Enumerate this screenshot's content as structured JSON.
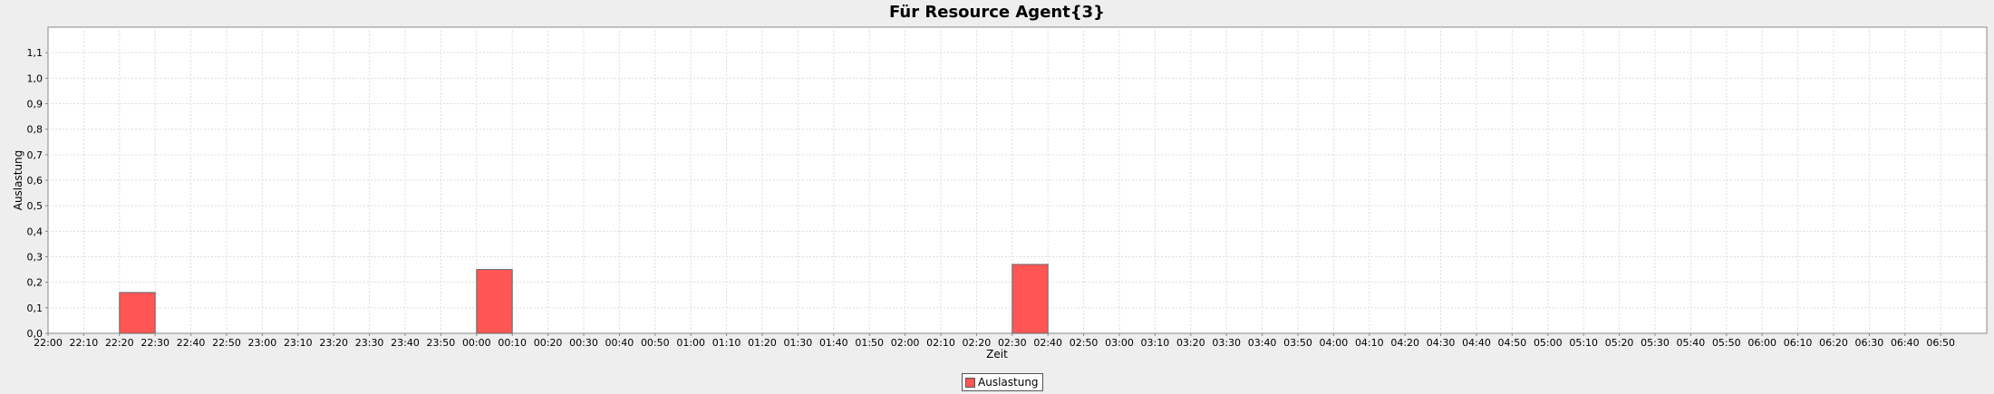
{
  "chart_data": {
    "type": "bar",
    "title": "Für Resource Agent{3}",
    "xlabel": "Zeit",
    "ylabel": "Auslastung",
    "x_ticks": [
      "22:00",
      "22:10",
      "22:20",
      "22:30",
      "22:40",
      "22:50",
      "23:00",
      "23:10",
      "23:20",
      "23:30",
      "23:40",
      "23:50",
      "00:00",
      "00:10",
      "00:20",
      "00:30",
      "00:40",
      "00:50",
      "01:00",
      "01:10",
      "01:20",
      "01:30",
      "01:40",
      "01:50",
      "02:00",
      "02:10",
      "02:20",
      "02:30",
      "02:40",
      "02:50",
      "03:00",
      "03:10",
      "03:20",
      "03:30",
      "03:40",
      "03:50",
      "04:00",
      "04:10",
      "04:20",
      "04:30",
      "04:40",
      "04:50",
      "05:00",
      "05:10",
      "05:20",
      "05:30",
      "05:40",
      "05:50",
      "06:00",
      "06:10",
      "06:20",
      "06:30",
      "06:40",
      "06:50"
    ],
    "y_ticks": [
      "0,0",
      "0,1",
      "0,2",
      "0,3",
      "0,4",
      "0,5",
      "0,6",
      "0,7",
      "0,8",
      "0,9",
      "1,0",
      "1,1"
    ],
    "ylim": [
      0,
      1.2
    ],
    "grid": true,
    "legend_position": "bottom-center",
    "series": [
      {
        "name": "Auslastung",
        "color": "#ff5555",
        "bars": [
          {
            "start": "22:20",
            "end": "22:30",
            "value": 0.16
          },
          {
            "start": "00:00",
            "end": "00:10",
            "value": 0.25
          },
          {
            "start": "02:30",
            "end": "02:40",
            "value": 0.27
          }
        ]
      }
    ]
  }
}
